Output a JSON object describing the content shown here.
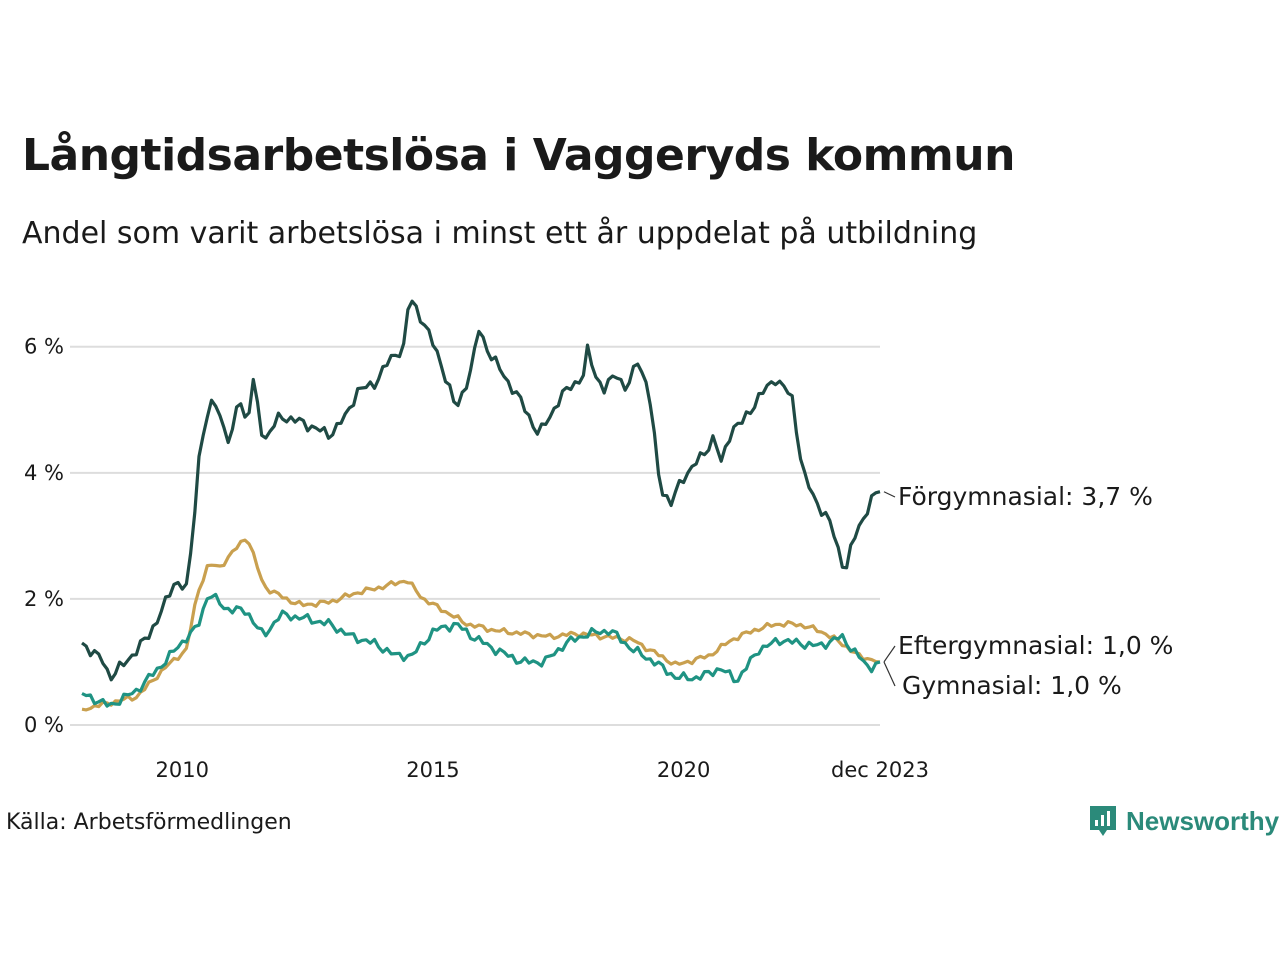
{
  "title": "Långtidsarbetslösa i Vaggeryds kommun",
  "subtitle": "Andel som varit arbetslösa i minst ett år uppdelat på utbildning",
  "source": "Källa: Arbetsförmedlingen",
  "brand": "Newsworthy",
  "colors": {
    "forgymnasial": "#1f4a44",
    "eftergymnasial": "#c9a04f",
    "gymnasial": "#1f9383",
    "grid": "#dddddd",
    "brand": "#2b8a7a"
  },
  "chart_data": {
    "type": "line",
    "x_start": 2008.0,
    "x_step_months": 1,
    "ylim": [
      0,
      6.9
    ],
    "xlim": [
      2008.0,
      2023.917
    ],
    "y_ticks": [
      {
        "value": 0,
        "label": "0 %"
      },
      {
        "value": 2,
        "label": "2 %"
      },
      {
        "value": 4,
        "label": "4 %"
      },
      {
        "value": 6,
        "label": "6 %"
      }
    ],
    "x_ticks": [
      {
        "value": 2010,
        "label": "2010"
      },
      {
        "value": 2015,
        "label": "2015"
      },
      {
        "value": 2020,
        "label": "2020"
      },
      {
        "value": 2023.917,
        "label": "dec 2023"
      }
    ],
    "series": [
      {
        "key": "forgymnasial",
        "name": "Förgymnasial",
        "end_label": "Förgymnasial: 3,7 %",
        "anchors": [
          [
            2008.0,
            1.3
          ],
          [
            2008.4,
            1.0
          ],
          [
            2008.5,
            0.75
          ],
          [
            2008.8,
            1.0
          ],
          [
            2009.2,
            1.4
          ],
          [
            2009.5,
            1.9
          ],
          [
            2009.7,
            2.3
          ],
          [
            2009.9,
            2.15
          ],
          [
            2010.0,
            2.9
          ],
          [
            2010.15,
            4.5
          ],
          [
            2010.4,
            5.2
          ],
          [
            2010.7,
            4.4
          ],
          [
            2010.85,
            5.3
          ],
          [
            2011.0,
            4.7
          ],
          [
            2011.1,
            5.5
          ],
          [
            2011.3,
            4.5
          ],
          [
            2011.6,
            4.9
          ],
          [
            2012.0,
            4.8
          ],
          [
            2012.5,
            4.6
          ],
          [
            2012.8,
            4.9
          ],
          [
            2013.0,
            5.3
          ],
          [
            2013.3,
            5.4
          ],
          [
            2013.6,
            5.8
          ],
          [
            2013.85,
            6.0
          ],
          [
            2013.95,
            6.8
          ],
          [
            2014.2,
            6.4
          ],
          [
            2014.5,
            5.8
          ],
          [
            2014.8,
            5.0
          ],
          [
            2015.1,
            5.7
          ],
          [
            2015.2,
            6.3
          ],
          [
            2015.4,
            5.9
          ],
          [
            2015.7,
            5.5
          ],
          [
            2016.0,
            5.1
          ],
          [
            2016.3,
            4.6
          ],
          [
            2016.7,
            5.2
          ],
          [
            2016.9,
            5.4
          ],
          [
            2017.1,
            5.5
          ],
          [
            2017.2,
            6.0
          ],
          [
            2017.3,
            5.6
          ],
          [
            2017.5,
            5.3
          ],
          [
            2017.7,
            5.6
          ],
          [
            2017.9,
            5.3
          ],
          [
            2018.1,
            5.8
          ],
          [
            2018.3,
            5.3
          ],
          [
            2018.5,
            3.8
          ],
          [
            2018.7,
            3.5
          ],
          [
            2018.9,
            3.9
          ],
          [
            2019.1,
            4.1
          ],
          [
            2019.3,
            4.3
          ],
          [
            2019.5,
            4.6
          ],
          [
            2019.6,
            4.1
          ],
          [
            2019.8,
            4.7
          ],
          [
            2020.0,
            4.8
          ],
          [
            2020.3,
            5.2
          ],
          [
            2020.6,
            5.5
          ],
          [
            2020.9,
            5.2
          ],
          [
            2021.1,
            4.0
          ],
          [
            2021.3,
            3.6
          ],
          [
            2021.6,
            3.2
          ],
          [
            2021.8,
            2.6
          ],
          [
            2021.9,
            2.5
          ],
          [
            2022.0,
            2.9
          ],
          [
            2022.2,
            3.3
          ],
          [
            2022.4,
            3.65
          ],
          [
            2022.5,
            3.7
          ]
        ],
        "smooth_anchors": true,
        "anchor_rescale": [
          2008.0,
          2022.5,
          2008.0,
          2023.917
        ],
        "wiggle": 0.1
      },
      {
        "key": "eftergymnasial",
        "name": "Eftergymnasial",
        "end_label": "Eftergymnasial: 1,0 %",
        "anchors": [
          [
            2008.0,
            0.25
          ],
          [
            2008.5,
            0.35
          ],
          [
            2009.0,
            0.45
          ],
          [
            2009.5,
            0.9
          ],
          [
            2009.9,
            1.2
          ],
          [
            2010.1,
            2.1
          ],
          [
            2010.3,
            2.55
          ],
          [
            2010.5,
            2.5
          ],
          [
            2010.8,
            2.8
          ],
          [
            2011.0,
            3.0
          ],
          [
            2011.3,
            2.2
          ],
          [
            2011.7,
            2.0
          ],
          [
            2012.0,
            1.9
          ],
          [
            2012.5,
            1.95
          ],
          [
            2013.0,
            2.1
          ],
          [
            2013.5,
            2.2
          ],
          [
            2013.9,
            2.3
          ],
          [
            2014.2,
            2.0
          ],
          [
            2014.6,
            1.8
          ],
          [
            2015.0,
            1.6
          ],
          [
            2015.5,
            1.5
          ],
          [
            2016.0,
            1.45
          ],
          [
            2016.5,
            1.4
          ],
          [
            2017.0,
            1.45
          ],
          [
            2017.5,
            1.4
          ],
          [
            2018.0,
            1.35
          ],
          [
            2018.5,
            1.1
          ],
          [
            2018.8,
            0.95
          ],
          [
            2019.0,
            1.0
          ],
          [
            2019.4,
            1.1
          ],
          [
            2019.8,
            1.35
          ],
          [
            2020.2,
            1.5
          ],
          [
            2020.6,
            1.6
          ],
          [
            2021.0,
            1.6
          ],
          [
            2021.4,
            1.5
          ],
          [
            2021.8,
            1.3
          ],
          [
            2022.1,
            1.1
          ],
          [
            2022.5,
            1.0
          ]
        ],
        "smooth_anchors": true,
        "anchor_rescale": [
          2008.0,
          2022.5,
          2008.0,
          2023.917
        ],
        "wiggle": 0.05
      },
      {
        "key": "gymnasial",
        "name": "Gymnasial",
        "end_label": "Gymnasial: 1,0 %",
        "anchors": [
          [
            2008.0,
            0.5
          ],
          [
            2008.5,
            0.3
          ],
          [
            2009.0,
            0.55
          ],
          [
            2009.5,
            1.0
          ],
          [
            2009.8,
            1.3
          ],
          [
            2010.1,
            1.55
          ],
          [
            2010.3,
            2.1
          ],
          [
            2010.6,
            1.85
          ],
          [
            2011.0,
            1.8
          ],
          [
            2011.3,
            1.4
          ],
          [
            2011.6,
            1.75
          ],
          [
            2012.0,
            1.7
          ],
          [
            2012.5,
            1.6
          ],
          [
            2012.9,
            1.4
          ],
          [
            2013.3,
            1.3
          ],
          [
            2013.7,
            1.1
          ],
          [
            2014.0,
            1.1
          ],
          [
            2014.4,
            1.5
          ],
          [
            2014.8,
            1.6
          ],
          [
            2015.1,
            1.4
          ],
          [
            2015.5,
            1.2
          ],
          [
            2016.0,
            1.0
          ],
          [
            2016.4,
            1.0
          ],
          [
            2016.8,
            1.3
          ],
          [
            2017.2,
            1.45
          ],
          [
            2017.6,
            1.5
          ],
          [
            2018.0,
            1.2
          ],
          [
            2018.4,
            1.0
          ],
          [
            2018.8,
            0.75
          ],
          [
            2019.2,
            0.75
          ],
          [
            2019.6,
            0.9
          ],
          [
            2019.9,
            0.7
          ],
          [
            2020.3,
            1.2
          ],
          [
            2020.7,
            1.35
          ],
          [
            2021.0,
            1.3
          ],
          [
            2021.4,
            1.25
          ],
          [
            2021.8,
            1.4
          ],
          [
            2022.0,
            1.2
          ],
          [
            2022.3,
            0.9
          ],
          [
            2022.5,
            1.0
          ]
        ],
        "smooth_anchors": true,
        "anchor_rescale": [
          2008.0,
          2022.5,
          2008.0,
          2023.917
        ],
        "wiggle": 0.08
      }
    ]
  }
}
